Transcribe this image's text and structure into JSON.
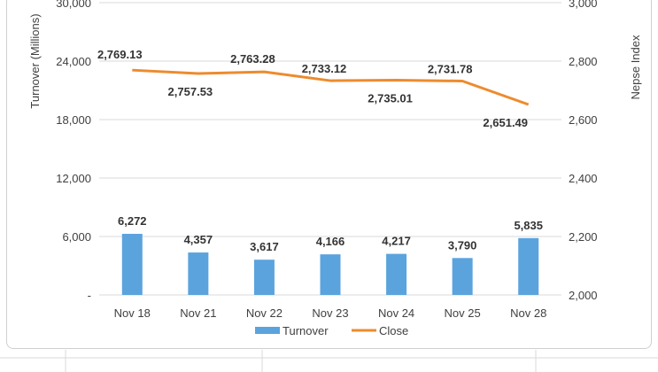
{
  "chart_data": {
    "type": "bar+line",
    "categories": [
      "Nov 18",
      "Nov 21",
      "Nov 22",
      "Nov 23",
      "Nov 24",
      "Nov 25",
      "Nov 28"
    ],
    "series": [
      {
        "name": "Turnover",
        "type": "bar",
        "axis": "left",
        "values": [
          6272,
          4357,
          3617,
          4166,
          4217,
          3790,
          5835
        ],
        "labels": [
          "6,272",
          "4,357",
          "3,617",
          "4,166",
          "4,217",
          "3,790",
          "5,835"
        ],
        "color": "#5ba3dd"
      },
      {
        "name": "Close",
        "type": "line",
        "axis": "right",
        "values": [
          2769.13,
          2757.53,
          2763.28,
          2733.12,
          2735.01,
          2731.78,
          2651.49
        ],
        "labels": [
          "2,769.13",
          "2,757.53",
          "2,763.28",
          "2,733.12",
          "2,735.01",
          "2,731.78",
          "2,651.49"
        ],
        "color": "#ed8b2e"
      }
    ],
    "y_left": {
      "label": "Turnover (Millions)",
      "lim": [
        0,
        30000
      ],
      "ticks": [
        0,
        6000,
        12000,
        18000,
        24000,
        30000
      ],
      "tick_labels": [
        "-",
        "6,000",
        "12,000",
        "18,000",
        "24,000",
        "30,000"
      ]
    },
    "y_right": {
      "label": "Nepse Index",
      "lim": [
        2000,
        3000
      ],
      "ticks": [
        2000,
        2200,
        2400,
        2600,
        2800,
        3000
      ],
      "tick_labels": [
        "2,000",
        "2,200",
        "2,400",
        "2,600",
        "2,800",
        "3,000"
      ]
    },
    "grid": true,
    "legend": "bottom-center"
  }
}
